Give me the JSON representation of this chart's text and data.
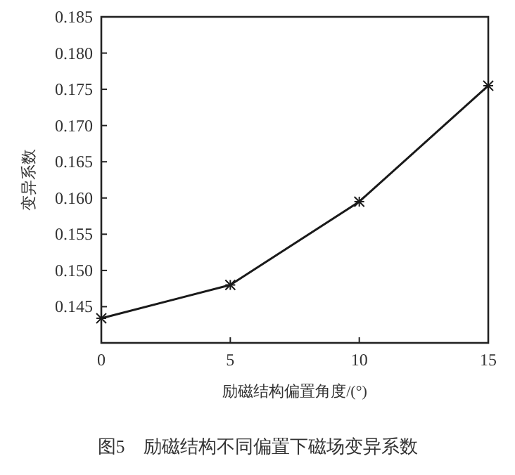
{
  "chart_data": {
    "type": "line",
    "xlabel": "励磁结构偏置角度/(°)",
    "ylabel": "变异系数",
    "annotations": [
      "图5　励磁结构不同偏置下磁场变异系数"
    ],
    "x": [
      0,
      5,
      10,
      15
    ],
    "series": [
      {
        "color": "#1a1a1a",
        "values": [
          0.1434,
          0.148,
          0.1595,
          0.1755
        ]
      }
    ],
    "xlim": [
      0,
      15
    ],
    "xticks": [
      0,
      5,
      10,
      15
    ],
    "ylim": [
      0.14,
      0.185
    ],
    "yticks": [
      0.145,
      {
        "value": 0.15,
        "label": "0.150"
      },
      0.155,
      {
        "value": 0.16,
        "label": "0.160"
      },
      0.165,
      {
        "value": 0.17,
        "label": "0.170"
      },
      0.175,
      {
        "value": 0.18,
        "label": "0.180"
      },
      0.185
    ],
    "marker": "cross",
    "line_style": "solid",
    "grid": false
  }
}
